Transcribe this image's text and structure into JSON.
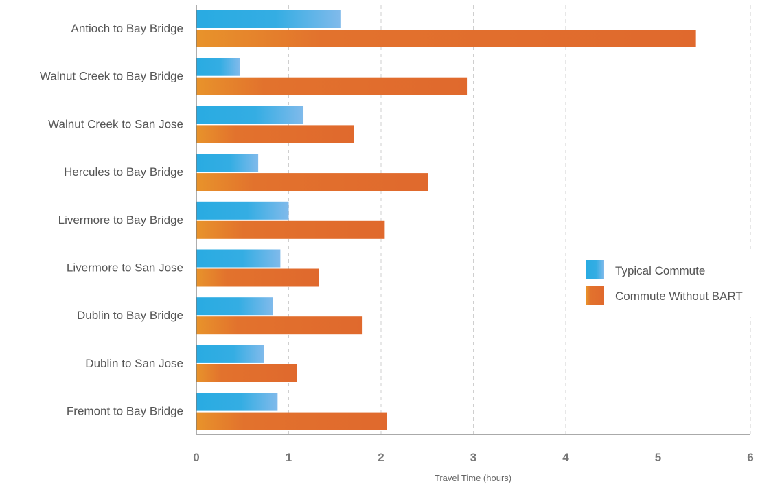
{
  "chart_data": {
    "type": "bar",
    "orientation": "horizontal",
    "categories": [
      "Antioch to Bay Bridge",
      "Walnut Creek to Bay Bridge",
      "Walnut Creek to San Jose",
      "Hercules to Bay Bridge",
      "Livermore to Bay Bridge",
      "Livermore to San Jose",
      "Dublin to Bay Bridge",
      "Dublin to San Jose",
      "Fremont to Bay Bridge"
    ],
    "series": [
      {
        "name": "Typical Commute",
        "values": [
          1.56,
          0.47,
          1.16,
          0.67,
          1.0,
          0.91,
          0.83,
          0.73,
          0.88
        ]
      },
      {
        "name": "Commute Without BART",
        "values": [
          5.41,
          2.93,
          1.71,
          2.51,
          2.04,
          1.33,
          1.8,
          1.09,
          2.06
        ]
      }
    ],
    "xlabel": "Travel Time (hours)",
    "xlim": [
      0,
      6
    ],
    "xticks": [
      "0",
      "1",
      "2",
      "3",
      "4",
      "5",
      "6"
    ],
    "grid": "vertical dashed",
    "legend_position": "right",
    "colors": {
      "Typical Commute": [
        "#29abe2",
        "#7ab8eb"
      ],
      "Commute Without BART": [
        "#e8912c",
        "#e0692d"
      ]
    }
  }
}
